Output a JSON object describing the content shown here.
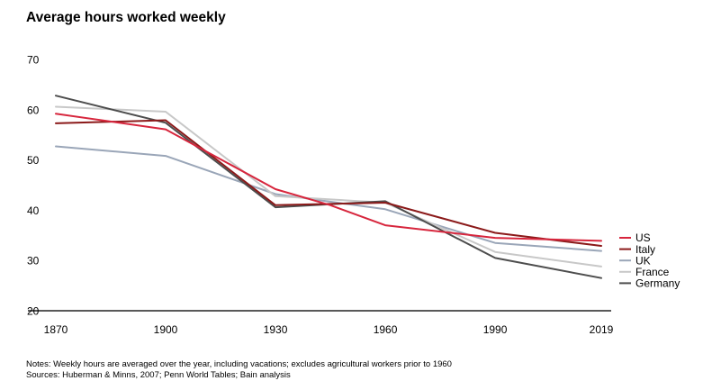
{
  "chart_data": {
    "type": "line",
    "title": "Average hours worked weekly",
    "x": [
      1870,
      1900,
      1930,
      1960,
      1990,
      2019
    ],
    "x_tick_labels": [
      "1870",
      "1900",
      "1930",
      "1960",
      "1990",
      "2019"
    ],
    "ylim": [
      20,
      70
    ],
    "y_ticks": [
      20,
      30,
      40,
      50,
      60,
      70
    ],
    "grid": false,
    "legend_position": "right",
    "series": [
      {
        "name": "US",
        "color": "#d7263d",
        "points": [
          [
            1870,
            59.2
          ],
          [
            1900,
            56.1
          ],
          [
            1930,
            44.2
          ],
          [
            1945,
            41.0
          ],
          [
            1960,
            37.0
          ],
          [
            1990,
            34.5
          ],
          [
            2019,
            33.9
          ]
        ]
      },
      {
        "name": "Italy",
        "color": "#8b1a1a",
        "points": [
          [
            1870,
            57.3
          ],
          [
            1900,
            57.9
          ],
          [
            1930,
            41.0
          ],
          [
            1960,
            41.5
          ],
          [
            1990,
            35.5
          ],
          [
            2019,
            32.9
          ]
        ]
      },
      {
        "name": "UK",
        "color": "#9aa6b8",
        "points": [
          [
            1870,
            52.7
          ],
          [
            1900,
            50.8
          ],
          [
            1930,
            43.2
          ],
          [
            1960,
            40.2
          ],
          [
            1990,
            33.5
          ],
          [
            2019,
            31.9
          ]
        ]
      },
      {
        "name": "France",
        "color": "#c8c8c8",
        "points": [
          [
            1870,
            60.6
          ],
          [
            1900,
            59.6
          ],
          [
            1930,
            42.8
          ],
          [
            1960,
            41.5
          ],
          [
            1990,
            31.7
          ],
          [
            2019,
            28.8
          ]
        ]
      },
      {
        "name": "Germany",
        "color": "#4d4d4d",
        "points": [
          [
            1870,
            62.8
          ],
          [
            1900,
            57.4
          ],
          [
            1930,
            40.6
          ],
          [
            1960,
            41.8
          ],
          [
            1990,
            30.5
          ],
          [
            2019,
            26.5
          ]
        ]
      }
    ]
  },
  "notes": {
    "line1": "Notes: Weekly hours are averaged over the year, including vacations; excludes agricultural workers prior to 1960",
    "line2": "Sources: Huberman & Minns, 2007; Penn World Tables; Bain analysis"
  }
}
